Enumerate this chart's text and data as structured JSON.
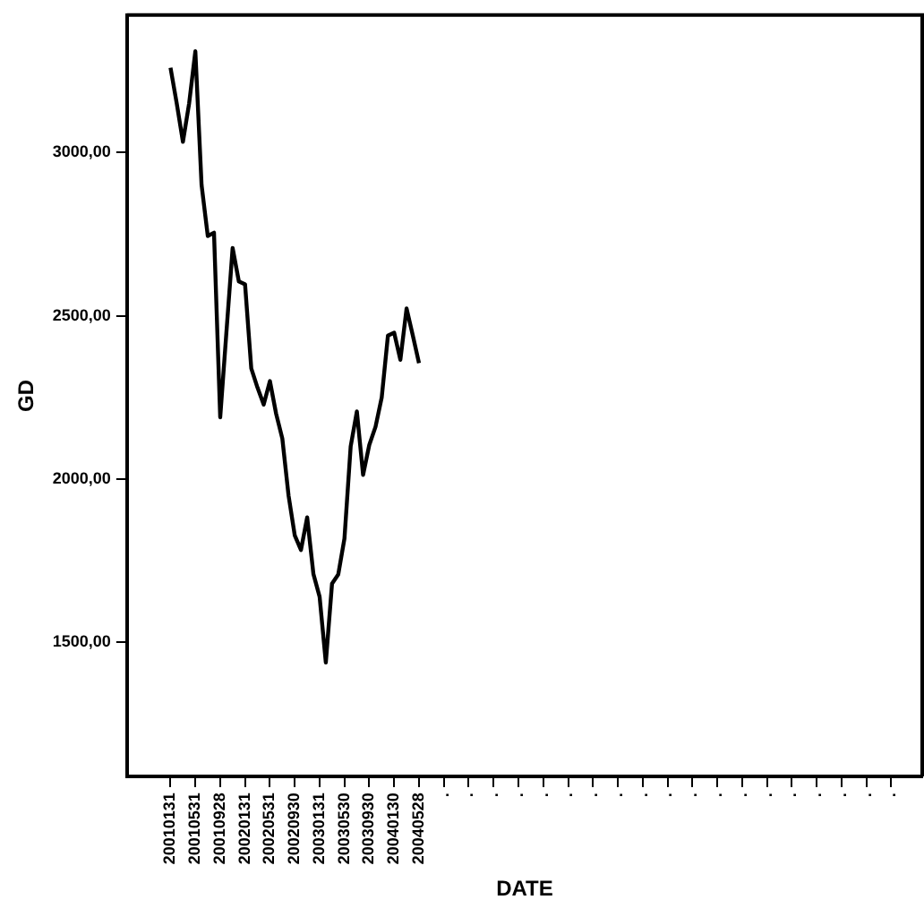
{
  "chart_data": {
    "type": "line",
    "xlabel": "DATE",
    "ylabel": "GD",
    "x": [
      "2001-01",
      "2001-02",
      "2001-03",
      "2001-04",
      "2001-05",
      "2001-06",
      "2001-07",
      "2001-08",
      "2001-09",
      "2001-10",
      "2001-11",
      "2001-12",
      "2002-01",
      "2002-02",
      "2002-03",
      "2002-04",
      "2002-05",
      "2002-06",
      "2002-07",
      "2002-08",
      "2002-09",
      "2002-10",
      "2002-11",
      "2002-12",
      "2003-01",
      "2003-02",
      "2003-03",
      "2003-04",
      "2003-05",
      "2003-06",
      "2003-07",
      "2003-08",
      "2003-09",
      "2003-10",
      "2003-11",
      "2003-12",
      "2004-01",
      "2004-02",
      "2004-03",
      "2004-04",
      "2004-05"
    ],
    "series": [
      {
        "color": "#000000",
        "values": [
          3259,
          3150,
          3032,
          3150,
          3309,
          2900,
          2744,
          2754,
          2189,
          2450,
          2707,
          2605,
          2596,
          2339,
          2280,
          2228,
          2300,
          2200,
          2124,
          1950,
          1828,
          1783,
          1883,
          1710,
          1640,
          1439,
          1680,
          1708,
          1818,
          2100,
          2207,
          2013,
          2105,
          2160,
          2250,
          2439,
          2448,
          2365,
          2522,
          2440,
          2355
        ]
      }
    ],
    "xlim": [
      "2000-06",
      "2011-02"
    ],
    "xticks": [
      {
        "value": "2001-01",
        "label": "20010131"
      },
      {
        "value": "2001-05",
        "label": "20010531"
      },
      {
        "value": "2001-09",
        "label": "20010928"
      },
      {
        "value": "2002-01",
        "label": "20020131"
      },
      {
        "value": "2002-05",
        "label": "20020531"
      },
      {
        "value": "2002-09",
        "label": "20020930"
      },
      {
        "value": "2003-01",
        "label": "20030131"
      },
      {
        "value": "2003-05",
        "label": "20030530"
      },
      {
        "value": "2003-09",
        "label": "20030930"
      },
      {
        "value": "2004-01",
        "label": "20040130"
      },
      {
        "value": "2004-05",
        "label": "20040528"
      },
      {
        "value": "2004-09",
        "label": "."
      },
      {
        "value": "2005-01",
        "label": "."
      },
      {
        "value": "2005-05",
        "label": "."
      },
      {
        "value": "2005-09",
        "label": "."
      },
      {
        "value": "2006-01",
        "label": "."
      },
      {
        "value": "2006-05",
        "label": "."
      },
      {
        "value": "2006-09",
        "label": "."
      },
      {
        "value": "2007-01",
        "label": "."
      },
      {
        "value": "2007-05",
        "label": "."
      },
      {
        "value": "2007-09",
        "label": "."
      },
      {
        "value": "2008-01",
        "label": "."
      },
      {
        "value": "2008-05",
        "label": "."
      },
      {
        "value": "2008-09",
        "label": "."
      },
      {
        "value": "2009-01",
        "label": "."
      },
      {
        "value": "2009-05",
        "label": "."
      },
      {
        "value": "2009-09",
        "label": "."
      },
      {
        "value": "2010-01",
        "label": "."
      },
      {
        "value": "2010-05",
        "label": "."
      },
      {
        "value": "2010-09",
        "label": "."
      }
    ],
    "ylim": [
      1090,
      3420
    ],
    "yticks": [
      {
        "value": 1500,
        "label": "1500,00"
      },
      {
        "value": 2000,
        "label": "2000,00"
      },
      {
        "value": 2500,
        "label": "2500,00"
      },
      {
        "value": 3000,
        "label": "3000,00"
      }
    ],
    "grid": false,
    "legend": false,
    "marker": "none",
    "line_style": "solid"
  }
}
